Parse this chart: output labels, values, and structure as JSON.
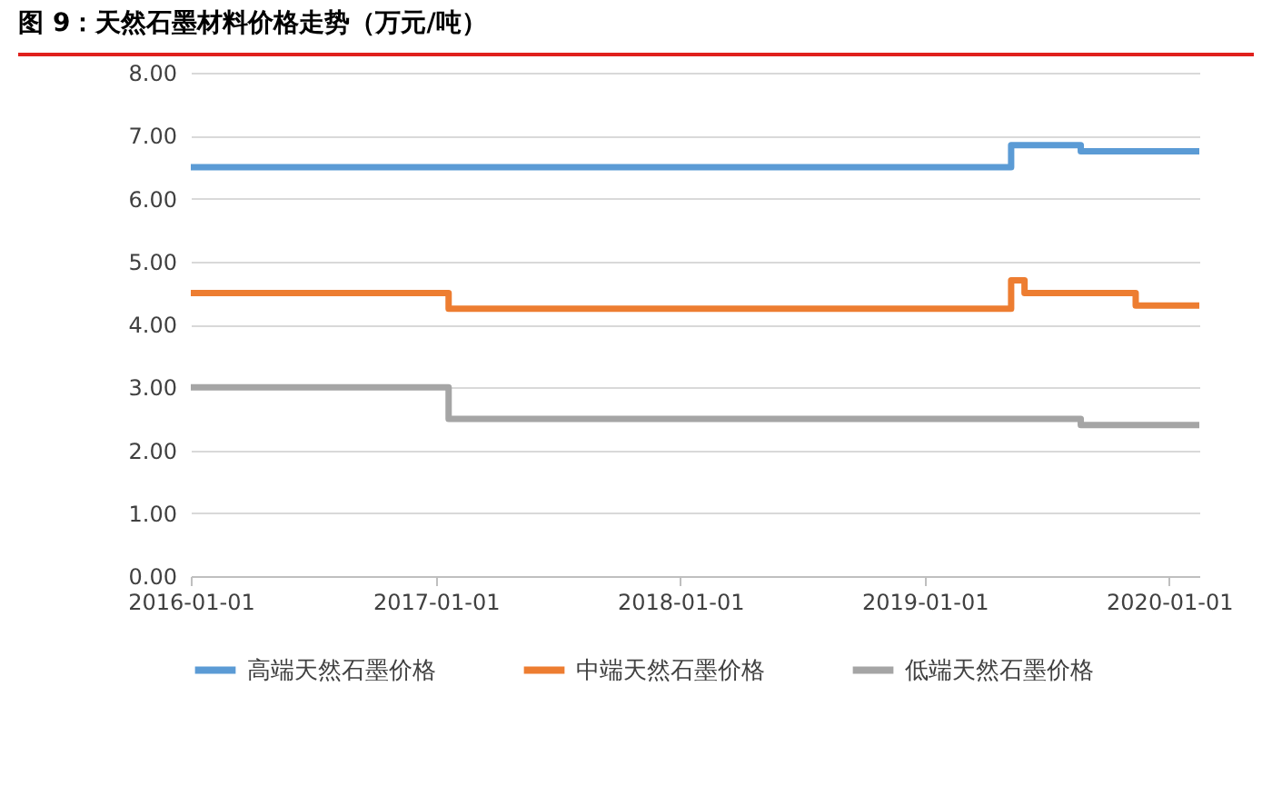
{
  "chart_data": {
    "type": "step",
    "title": "图 9：天然石墨材料价格走势（万元/吨）",
    "xlim": [
      "2016-01-01",
      "2020-02-15"
    ],
    "xticks": [
      "2016-01-01",
      "2017-01-01",
      "2018-01-01",
      "2019-01-01",
      "2020-01-01"
    ],
    "ylim": [
      0,
      8
    ],
    "yticks": [
      {
        "value": 0,
        "label": "0.00"
      },
      {
        "value": 1,
        "label": "1.00"
      },
      {
        "value": 2,
        "label": "2.00"
      },
      {
        "value": 3,
        "label": "3.00"
      },
      {
        "value": 4,
        "label": "4.00"
      },
      {
        "value": 5,
        "label": "5.00"
      },
      {
        "value": 6,
        "label": "6.00"
      },
      {
        "value": 7,
        "label": "7.00"
      },
      {
        "value": 8,
        "label": "8.00"
      }
    ],
    "grid": "y",
    "legend": "bottom",
    "line_style": "solid",
    "marker": "none",
    "series": [
      {
        "name": "高端天然石墨价格",
        "color": "#5b9bd5",
        "x": [
          "2016-01-01",
          "2019-05-10",
          "2019-08-22",
          "2020-02-15"
        ],
        "values": [
          6.5,
          6.85,
          6.75,
          6.75
        ]
      },
      {
        "name": "中端天然石墨价格",
        "color": "#ed7d31",
        "x": [
          "2016-01-01",
          "2017-01-20",
          "2019-05-10",
          "2019-05-30",
          "2019-11-12",
          "2020-02-15"
        ],
        "values": [
          4.5,
          4.25,
          4.7,
          4.5,
          4.3,
          4.3
        ]
      },
      {
        "name": "低端天然石墨价格",
        "color": "#a5a5a5",
        "x": [
          "2016-01-01",
          "2017-01-20",
          "2019-08-22",
          "2020-02-15"
        ],
        "values": [
          3.0,
          2.5,
          2.4,
          2.4
        ]
      }
    ]
  }
}
